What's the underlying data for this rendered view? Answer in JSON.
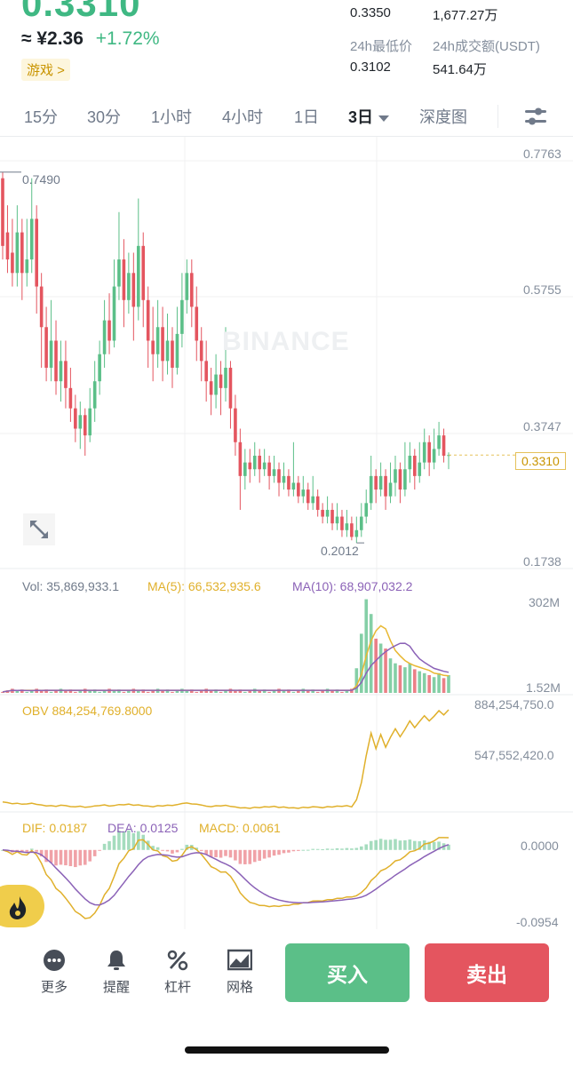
{
  "header": {
    "price": "0.3310",
    "cny_price": "≈ ¥2.36",
    "change_pct": "+1.72%",
    "category_tag": "游戏 >"
  },
  "stats": {
    "high_value": "0.3350",
    "volume_value": "1,677.27万",
    "low_label": "24h最低价",
    "low_value": "0.3102",
    "turnover_label": "24h成交额(USDT)",
    "turnover_value": "541.64万"
  },
  "tabs": [
    {
      "label": "15分"
    },
    {
      "label": "30分"
    },
    {
      "label": "1小时"
    },
    {
      "label": "4小时"
    },
    {
      "label": "1日"
    },
    {
      "label": "3日"
    },
    {
      "label": "深度图"
    }
  ],
  "chart_data": {
    "type": "candlestick",
    "watermark": "BINANCE",
    "price_axis": [
      "0.7763",
      "0.5755",
      "0.3747",
      "0.1738"
    ],
    "price_range": [
      0.1738,
      0.7763
    ],
    "high_marker": "0.7490",
    "low_marker": "0.2012",
    "current_price": "0.3310",
    "candles_approx": [
      [
        0.74,
        0.64,
        0.749,
        0.62
      ],
      [
        0.66,
        0.62,
        0.7,
        0.6
      ],
      [
        0.63,
        0.6,
        0.68,
        0.58
      ],
      [
        0.6,
        0.66,
        0.7,
        0.58
      ],
      [
        0.66,
        0.6,
        0.68,
        0.56
      ],
      [
        0.6,
        0.62,
        0.68,
        0.58
      ],
      [
        0.62,
        0.68,
        0.74,
        0.6
      ],
      [
        0.68,
        0.58,
        0.7,
        0.54
      ],
      [
        0.58,
        0.52,
        0.6,
        0.46
      ],
      [
        0.52,
        0.46,
        0.55,
        0.44
      ],
      [
        0.46,
        0.5,
        0.56,
        0.44
      ],
      [
        0.5,
        0.44,
        0.53,
        0.42
      ],
      [
        0.44,
        0.47,
        0.5,
        0.41
      ],
      [
        0.47,
        0.43,
        0.5,
        0.4
      ],
      [
        0.43,
        0.4,
        0.46,
        0.38
      ],
      [
        0.4,
        0.37,
        0.42,
        0.35
      ],
      [
        0.37,
        0.39,
        0.41,
        0.34
      ],
      [
        0.39,
        0.36,
        0.4,
        0.33
      ],
      [
        0.36,
        0.4,
        0.43,
        0.35
      ],
      [
        0.4,
        0.44,
        0.47,
        0.38
      ],
      [
        0.44,
        0.48,
        0.5,
        0.42
      ],
      [
        0.48,
        0.53,
        0.56,
        0.46
      ],
      [
        0.53,
        0.5,
        0.57,
        0.48
      ],
      [
        0.5,
        0.58,
        0.62,
        0.49
      ],
      [
        0.58,
        0.62,
        0.69,
        0.56
      ],
      [
        0.62,
        0.56,
        0.65,
        0.52
      ],
      [
        0.56,
        0.6,
        0.63,
        0.54
      ],
      [
        0.6,
        0.55,
        0.63,
        0.5
      ],
      [
        0.55,
        0.64,
        0.71,
        0.53
      ],
      [
        0.64,
        0.56,
        0.66,
        0.52
      ],
      [
        0.56,
        0.5,
        0.58,
        0.46
      ],
      [
        0.5,
        0.48,
        0.55,
        0.44
      ],
      [
        0.48,
        0.52,
        0.56,
        0.46
      ],
      [
        0.52,
        0.47,
        0.55,
        0.44
      ],
      [
        0.47,
        0.5,
        0.54,
        0.45
      ],
      [
        0.5,
        0.46,
        0.52,
        0.43
      ],
      [
        0.46,
        0.51,
        0.55,
        0.45
      ],
      [
        0.51,
        0.56,
        0.6,
        0.49
      ],
      [
        0.56,
        0.6,
        0.62,
        0.54
      ],
      [
        0.6,
        0.55,
        0.62,
        0.52
      ],
      [
        0.55,
        0.5,
        0.58,
        0.47
      ],
      [
        0.5,
        0.47,
        0.52,
        0.44
      ],
      [
        0.47,
        0.44,
        0.5,
        0.41
      ],
      [
        0.44,
        0.42,
        0.46,
        0.39
      ],
      [
        0.42,
        0.45,
        0.48,
        0.4
      ],
      [
        0.45,
        0.43,
        0.47,
        0.39
      ],
      [
        0.43,
        0.46,
        0.52,
        0.41
      ],
      [
        0.46,
        0.4,
        0.47,
        0.37
      ],
      [
        0.4,
        0.35,
        0.42,
        0.33
      ],
      [
        0.35,
        0.3,
        0.37,
        0.25
      ],
      [
        0.3,
        0.32,
        0.34,
        0.28
      ],
      [
        0.32,
        0.31,
        0.34,
        0.29
      ],
      [
        0.31,
        0.33,
        0.35,
        0.3
      ],
      [
        0.33,
        0.31,
        0.34,
        0.29
      ],
      [
        0.31,
        0.32,
        0.34,
        0.3
      ],
      [
        0.32,
        0.3,
        0.33,
        0.28
      ],
      [
        0.3,
        0.31,
        0.33,
        0.29
      ],
      [
        0.31,
        0.29,
        0.32,
        0.27
      ],
      [
        0.29,
        0.3,
        0.32,
        0.28
      ],
      [
        0.3,
        0.28,
        0.31,
        0.27
      ],
      [
        0.28,
        0.29,
        0.35,
        0.27
      ],
      [
        0.29,
        0.27,
        0.3,
        0.26
      ],
      [
        0.27,
        0.28,
        0.3,
        0.26
      ],
      [
        0.28,
        0.26,
        0.29,
        0.25
      ],
      [
        0.26,
        0.27,
        0.3,
        0.25
      ],
      [
        0.27,
        0.25,
        0.28,
        0.24
      ],
      [
        0.25,
        0.24,
        0.26,
        0.23
      ],
      [
        0.24,
        0.25,
        0.27,
        0.23
      ],
      [
        0.25,
        0.23,
        0.26,
        0.22
      ],
      [
        0.23,
        0.24,
        0.26,
        0.22
      ],
      [
        0.24,
        0.22,
        0.25,
        0.21
      ],
      [
        0.22,
        0.23,
        0.25,
        0.21
      ],
      [
        0.23,
        0.21,
        0.24,
        0.205
      ],
      [
        0.21,
        0.22,
        0.24,
        0.2012
      ],
      [
        0.22,
        0.24,
        0.26,
        0.21
      ],
      [
        0.24,
        0.26,
        0.28,
        0.23
      ],
      [
        0.26,
        0.3,
        0.33,
        0.25
      ],
      [
        0.3,
        0.28,
        0.31,
        0.26
      ],
      [
        0.28,
        0.3,
        0.32,
        0.27
      ],
      [
        0.3,
        0.27,
        0.31,
        0.25
      ],
      [
        0.27,
        0.29,
        0.32,
        0.26
      ],
      [
        0.29,
        0.31,
        0.33,
        0.27
      ],
      [
        0.31,
        0.28,
        0.32,
        0.26
      ],
      [
        0.28,
        0.31,
        0.35,
        0.27
      ],
      [
        0.31,
        0.33,
        0.35,
        0.29
      ],
      [
        0.33,
        0.3,
        0.34,
        0.28
      ],
      [
        0.3,
        0.32,
        0.35,
        0.29
      ],
      [
        0.32,
        0.35,
        0.37,
        0.31
      ],
      [
        0.35,
        0.32,
        0.36,
        0.3
      ],
      [
        0.32,
        0.34,
        0.37,
        0.31
      ],
      [
        0.34,
        0.36,
        0.38,
        0.33
      ],
      [
        0.36,
        0.33,
        0.37,
        0.32
      ],
      [
        0.33,
        0.331,
        0.335,
        0.3102
      ]
    ]
  },
  "volume": {
    "label": "Vol: 35,869,933.1",
    "ma5": "MA(5): 66,532,935.6",
    "ma10": "MA(10): 68,907,032.2",
    "axis_top": "302M",
    "axis_bottom": "1.52M"
  },
  "obv": {
    "label": "OBV 884,254,769.8000",
    "axis_top": "884,254,750.0",
    "axis_mid": "547,552,420.0"
  },
  "macd": {
    "dif": "DIF: 0.0187",
    "dea": "DEA: 0.0125",
    "macd": "MACD: 0.0061",
    "axis_top": "0.0000",
    "axis_bottom": "-0.0954"
  },
  "nav": [
    {
      "label": "更多",
      "icon": "more-icon"
    },
    {
      "label": "提醒",
      "icon": "bell-icon"
    },
    {
      "label": "杠杆",
      "icon": "percent-icon"
    },
    {
      "label": "网格",
      "icon": "grid-icon"
    }
  ],
  "actions": {
    "buy": "买入",
    "sell": "卖出"
  },
  "colors": {
    "up": "#5bbf88",
    "down": "#e4555f",
    "accent": "#f0b90b",
    "ma5": "#e8b833",
    "ma10": "#8b62b7"
  }
}
